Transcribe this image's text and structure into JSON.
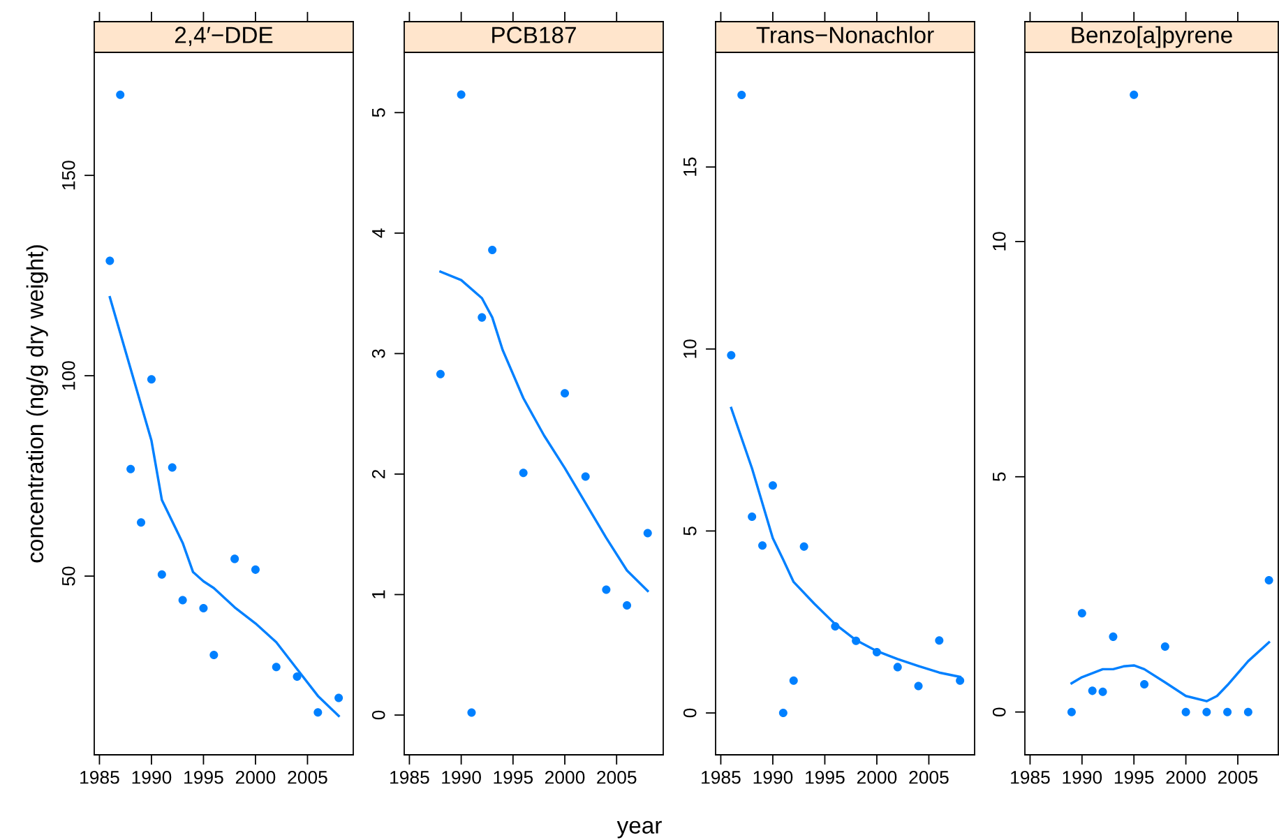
{
  "chart_data": [
    {
      "type": "scatter",
      "title": "2,4′−DDE",
      "ylabel": "concentration (ng/g dry weight)",
      "xlim": [
        1984.5,
        2009.4
      ],
      "xticks": [
        1985,
        1990,
        1995,
        2000,
        2005
      ],
      "ylim": [
        5.4,
        180.7
      ],
      "yticks": [
        50,
        100,
        150
      ],
      "grid": false,
      "series": [
        {
          "color": "#0080ff",
          "marker": "circle",
          "x": [
            1986,
            1987,
            1988,
            1989,
            1990,
            1991,
            1992,
            1993,
            1995,
            1996,
            1998,
            2000,
            2002,
            2004,
            2006,
            2008
          ],
          "values": [
            128.7,
            170.1,
            76.7,
            63.4,
            99.1,
            50.4,
            77.1,
            44.0,
            42.0,
            30.3,
            54.3,
            51.6,
            27.3,
            24.9,
            16.0,
            19.6
          ]
        },
        {
          "type": "line",
          "color": "#0080ff",
          "marker": "none",
          "x": [
            1986,
            1990,
            1991,
            1993,
            1994,
            1995,
            1996,
            1998,
            2000,
            2002,
            2004,
            2006,
            2008
          ],
          "values": [
            119.6,
            83.8,
            69.0,
            58.3,
            51.0,
            48.7,
            47.0,
            42.2,
            38.2,
            33.5,
            26.8,
            20.1,
            15.1
          ]
        }
      ]
    },
    {
      "type": "scatter",
      "title": "PCB187",
      "xlabel": "year",
      "xlim": [
        1984.5,
        2009.5
      ],
      "xticks": [
        1985,
        1990,
        1995,
        2000,
        2005
      ],
      "ylim": [
        -0.33,
        5.5
      ],
      "yticks": [
        0,
        1,
        2,
        3,
        4,
        5
      ],
      "grid": false,
      "series": [
        {
          "color": "#0080ff",
          "marker": "circle",
          "x": [
            1988,
            1990,
            1991,
            1992,
            1993,
            1996,
            2000,
            2002,
            2004,
            2006,
            2008
          ],
          "values": [
            2.83,
            5.15,
            0.02,
            3.3,
            3.86,
            2.01,
            2.67,
            1.98,
            1.04,
            0.91,
            1.51
          ]
        },
        {
          "type": "line",
          "color": "#0080ff",
          "marker": "none",
          "x": [
            1988,
            1990,
            1992,
            1993,
            1994,
            1996,
            1998,
            2000,
            2002,
            2004,
            2006,
            2008
          ],
          "values": [
            3.68,
            3.61,
            3.46,
            3.3,
            3.03,
            2.63,
            2.32,
            2.05,
            1.76,
            1.47,
            1.2,
            1.03
          ]
        }
      ]
    },
    {
      "type": "scatter",
      "title": "Trans−Nonachlor",
      "xlim": [
        1984.5,
        2009.4
      ],
      "xticks": [
        1985,
        1990,
        1995,
        2000,
        2005
      ],
      "ylim": [
        -1.15,
        18.15
      ],
      "yticks": [
        0,
        5,
        10,
        15
      ],
      "grid": false,
      "series": [
        {
          "color": "#0080ff",
          "marker": "circle",
          "x": [
            1986,
            1987,
            1988,
            1989,
            1990,
            1991,
            1992,
            1993,
            1996,
            1998,
            2000,
            2002,
            2004,
            2006,
            2008
          ],
          "values": [
            9.83,
            16.98,
            5.39,
            4.6,
            6.25,
            0,
            0.89,
            4.57,
            2.38,
            1.98,
            1.67,
            1.26,
            0.74,
            1.99,
            0.89
          ]
        },
        {
          "type": "line",
          "color": "#0080ff",
          "marker": "none",
          "x": [
            1986,
            1988,
            1990,
            1991,
            1992,
            1994,
            1996,
            1998,
            2000,
            2002,
            2004,
            2006,
            2008
          ],
          "values": [
            8.38,
            6.72,
            4.8,
            4.21,
            3.6,
            3.0,
            2.44,
            2.0,
            1.7,
            1.48,
            1.29,
            1.11,
            0.99
          ]
        }
      ]
    },
    {
      "type": "scatter",
      "title": "Benzo[a]pyrene",
      "xlim": [
        1984.5,
        2008.9
      ],
      "xticks": [
        1985,
        1990,
        1995,
        2000,
        2005
      ],
      "ylim": [
        -0.91,
        14.02
      ],
      "yticks": [
        0,
        5,
        10
      ],
      "grid": false,
      "series": [
        {
          "color": "#0080ff",
          "marker": "circle",
          "x": [
            1989,
            1990,
            1991,
            1992,
            1993,
            1995,
            1996,
            1998,
            2000,
            2002,
            2004,
            2006,
            2008
          ],
          "values": [
            0,
            2.1,
            0.45,
            0.43,
            1.6,
            13.12,
            0.59,
            1.39,
            0,
            0,
            0,
            0,
            2.8
          ]
        },
        {
          "type": "line",
          "color": "#0080ff",
          "marker": "none",
          "x": [
            1989,
            1990,
            1992,
            1993,
            1994,
            1995,
            1996,
            1998,
            2000,
            2002,
            2003,
            2004,
            2006,
            2008
          ],
          "values": [
            0.61,
            0.74,
            0.91,
            0.91,
            0.97,
            0.99,
            0.91,
            0.63,
            0.34,
            0.23,
            0.34,
            0.57,
            1.08,
            1.48
          ]
        }
      ]
    }
  ]
}
